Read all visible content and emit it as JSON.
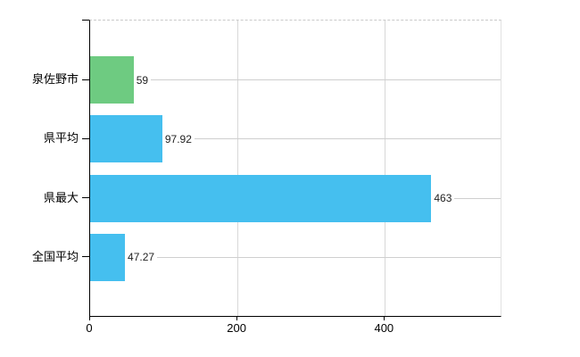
{
  "chart_data": {
    "type": "bar",
    "orientation": "horizontal",
    "title": "",
    "xlabel": "",
    "ylabel": "",
    "categories": [
      "泉佐野市",
      "県平均",
      "県最大",
      "全国平均"
    ],
    "values": [
      59,
      97.92,
      463,
      47.27
    ],
    "value_labels": [
      "59",
      "97.92",
      "463",
      "47.27"
    ],
    "bar_colors": [
      "#6ecb81",
      "#45bfef",
      "#45bfef",
      "#45bfef"
    ],
    "xlim": [
      0,
      557
    ],
    "x_ticks": [
      0,
      200,
      400
    ],
    "x_tick_labels": [
      "0",
      "200",
      "400"
    ],
    "grid": true,
    "legend": "none"
  },
  "colors": {
    "green_bar": "#6ecb81",
    "blue_bar": "#45bfef",
    "axis": "#000000",
    "gridline": "#cfcfcf",
    "value_text": "#222222",
    "background": "#ffffff"
  }
}
